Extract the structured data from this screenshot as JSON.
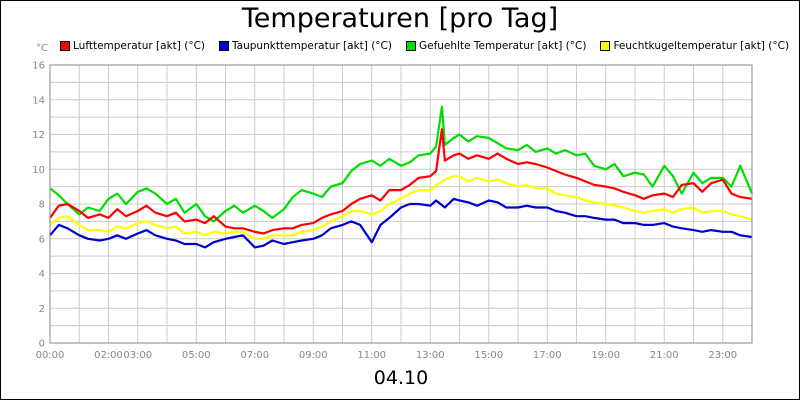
{
  "chart_data": {
    "type": "line",
    "title": "Temperaturen [pro Tag]",
    "unit": "°C",
    "date": "04.10",
    "ylim": [
      0,
      16
    ],
    "y_ticks": [
      0,
      2,
      4,
      6,
      8,
      10,
      12,
      14,
      16
    ],
    "x_range_hours": [
      0,
      24
    ],
    "x_ticks": [
      {
        "h": 0,
        "label": "00:00"
      },
      {
        "h": 2,
        "label": "02:00"
      },
      {
        "h": 3,
        "label": "03:00"
      },
      {
        "h": 5,
        "label": "05:00"
      },
      {
        "h": 7,
        "label": "07:00"
      },
      {
        "h": 9,
        "label": "09:00"
      },
      {
        "h": 11,
        "label": "11:00"
      },
      {
        "h": 13,
        "label": "13:00"
      },
      {
        "h": 15,
        "label": "15:00"
      },
      {
        "h": 17,
        "label": "17:00"
      },
      {
        "h": 19,
        "label": "19:00"
      },
      {
        "h": 21,
        "label": "21:00"
      },
      {
        "h": 23,
        "label": "23:00"
      }
    ],
    "grid": true,
    "legend_position": "top",
    "series": [
      {
        "name": "Lufttemperatur [akt] (°C)",
        "color": "#ff0000",
        "points": [
          [
            0,
            7.2
          ],
          [
            0.3,
            7.9
          ],
          [
            0.6,
            8.0
          ],
          [
            1.0,
            7.6
          ],
          [
            1.3,
            7.2
          ],
          [
            1.7,
            7.4
          ],
          [
            2.0,
            7.2
          ],
          [
            2.3,
            7.7
          ],
          [
            2.6,
            7.3
          ],
          [
            3.0,
            7.6
          ],
          [
            3.3,
            7.9
          ],
          [
            3.6,
            7.5
          ],
          [
            4.0,
            7.3
          ],
          [
            4.3,
            7.5
          ],
          [
            4.6,
            7.0
          ],
          [
            5.0,
            7.1
          ],
          [
            5.3,
            6.9
          ],
          [
            5.6,
            7.3
          ],
          [
            6.0,
            6.7
          ],
          [
            6.3,
            6.6
          ],
          [
            6.6,
            6.6
          ],
          [
            7.0,
            6.4
          ],
          [
            7.3,
            6.3
          ],
          [
            7.6,
            6.5
          ],
          [
            8.0,
            6.6
          ],
          [
            8.3,
            6.6
          ],
          [
            8.6,
            6.8
          ],
          [
            9.0,
            6.9
          ],
          [
            9.3,
            7.2
          ],
          [
            9.6,
            7.4
          ],
          [
            10.0,
            7.6
          ],
          [
            10.3,
            8.0
          ],
          [
            10.6,
            8.3
          ],
          [
            11.0,
            8.5
          ],
          [
            11.3,
            8.2
          ],
          [
            11.6,
            8.8
          ],
          [
            12.0,
            8.8
          ],
          [
            12.3,
            9.1
          ],
          [
            12.6,
            9.5
          ],
          [
            13.0,
            9.6
          ],
          [
            13.2,
            9.9
          ],
          [
            13.4,
            12.3
          ],
          [
            13.5,
            10.5
          ],
          [
            13.8,
            10.8
          ],
          [
            14.0,
            10.9
          ],
          [
            14.3,
            10.6
          ],
          [
            14.6,
            10.8
          ],
          [
            15.0,
            10.6
          ],
          [
            15.3,
            10.9
          ],
          [
            15.6,
            10.6
          ],
          [
            16.0,
            10.3
          ],
          [
            16.3,
            10.4
          ],
          [
            16.6,
            10.3
          ],
          [
            17.0,
            10.1
          ],
          [
            17.3,
            9.9
          ],
          [
            17.6,
            9.7
          ],
          [
            18.0,
            9.5
          ],
          [
            18.3,
            9.3
          ],
          [
            18.6,
            9.1
          ],
          [
            19.0,
            9.0
          ],
          [
            19.3,
            8.9
          ],
          [
            19.6,
            8.7
          ],
          [
            20.0,
            8.5
          ],
          [
            20.3,
            8.3
          ],
          [
            20.6,
            8.5
          ],
          [
            21.0,
            8.6
          ],
          [
            21.3,
            8.4
          ],
          [
            21.6,
            9.1
          ],
          [
            22.0,
            9.2
          ],
          [
            22.3,
            8.7
          ],
          [
            22.6,
            9.2
          ],
          [
            23.0,
            9.4
          ],
          [
            23.3,
            8.6
          ],
          [
            23.6,
            8.4
          ],
          [
            24.0,
            8.3
          ]
        ]
      },
      {
        "name": "Taupunkttemperatur [akt] (°C)",
        "color": "#0000cc",
        "points": [
          [
            0,
            6.2
          ],
          [
            0.3,
            6.8
          ],
          [
            0.6,
            6.6
          ],
          [
            1.0,
            6.2
          ],
          [
            1.3,
            6.0
          ],
          [
            1.7,
            5.9
          ],
          [
            2.0,
            6.0
          ],
          [
            2.3,
            6.2
          ],
          [
            2.6,
            6.0
          ],
          [
            3.0,
            6.3
          ],
          [
            3.3,
            6.5
          ],
          [
            3.6,
            6.2
          ],
          [
            4.0,
            6.0
          ],
          [
            4.3,
            5.9
          ],
          [
            4.6,
            5.7
          ],
          [
            5.0,
            5.7
          ],
          [
            5.3,
            5.5
          ],
          [
            5.6,
            5.8
          ],
          [
            6.0,
            6.0
          ],
          [
            6.3,
            6.1
          ],
          [
            6.6,
            6.2
          ],
          [
            7.0,
            5.5
          ],
          [
            7.3,
            5.6
          ],
          [
            7.6,
            5.9
          ],
          [
            8.0,
            5.7
          ],
          [
            8.3,
            5.8
          ],
          [
            8.6,
            5.9
          ],
          [
            9.0,
            6.0
          ],
          [
            9.3,
            6.2
          ],
          [
            9.6,
            6.6
          ],
          [
            10.0,
            6.8
          ],
          [
            10.3,
            7.0
          ],
          [
            10.6,
            6.8
          ],
          [
            11.0,
            5.8
          ],
          [
            11.3,
            6.8
          ],
          [
            11.6,
            7.2
          ],
          [
            12.0,
            7.8
          ],
          [
            12.3,
            8.0
          ],
          [
            12.6,
            8.0
          ],
          [
            13.0,
            7.9
          ],
          [
            13.2,
            8.2
          ],
          [
            13.5,
            7.8
          ],
          [
            13.8,
            8.3
          ],
          [
            14.0,
            8.2
          ],
          [
            14.3,
            8.1
          ],
          [
            14.6,
            7.9
          ],
          [
            15.0,
            8.2
          ],
          [
            15.3,
            8.1
          ],
          [
            15.6,
            7.8
          ],
          [
            16.0,
            7.8
          ],
          [
            16.3,
            7.9
          ],
          [
            16.6,
            7.8
          ],
          [
            17.0,
            7.8
          ],
          [
            17.3,
            7.6
          ],
          [
            17.6,
            7.5
          ],
          [
            18.0,
            7.3
          ],
          [
            18.3,
            7.3
          ],
          [
            18.6,
            7.2
          ],
          [
            19.0,
            7.1
          ],
          [
            19.3,
            7.1
          ],
          [
            19.6,
            6.9
          ],
          [
            20.0,
            6.9
          ],
          [
            20.3,
            6.8
          ],
          [
            20.6,
            6.8
          ],
          [
            21.0,
            6.9
          ],
          [
            21.3,
            6.7
          ],
          [
            21.6,
            6.6
          ],
          [
            22.0,
            6.5
          ],
          [
            22.3,
            6.4
          ],
          [
            22.6,
            6.5
          ],
          [
            23.0,
            6.4
          ],
          [
            23.3,
            6.4
          ],
          [
            23.6,
            6.2
          ],
          [
            24.0,
            6.1
          ]
        ]
      },
      {
        "name": "Gefuehlte Temperatur [akt] (°C)",
        "color": "#00dd00",
        "points": [
          [
            0,
            8.9
          ],
          [
            0.3,
            8.5
          ],
          [
            0.6,
            8.0
          ],
          [
            1.0,
            7.4
          ],
          [
            1.3,
            7.8
          ],
          [
            1.7,
            7.6
          ],
          [
            2.0,
            8.3
          ],
          [
            2.3,
            8.6
          ],
          [
            2.6,
            8.0
          ],
          [
            3.0,
            8.7
          ],
          [
            3.3,
            8.9
          ],
          [
            3.6,
            8.6
          ],
          [
            4.0,
            8.0
          ],
          [
            4.3,
            8.3
          ],
          [
            4.6,
            7.5
          ],
          [
            5.0,
            8.0
          ],
          [
            5.3,
            7.3
          ],
          [
            5.6,
            7.0
          ],
          [
            6.0,
            7.6
          ],
          [
            6.3,
            7.9
          ],
          [
            6.6,
            7.5
          ],
          [
            7.0,
            7.9
          ],
          [
            7.3,
            7.6
          ],
          [
            7.6,
            7.2
          ],
          [
            8.0,
            7.7
          ],
          [
            8.3,
            8.4
          ],
          [
            8.6,
            8.8
          ],
          [
            9.0,
            8.6
          ],
          [
            9.3,
            8.4
          ],
          [
            9.6,
            9.0
          ],
          [
            10.0,
            9.2
          ],
          [
            10.3,
            9.9
          ],
          [
            10.6,
            10.3
          ],
          [
            11.0,
            10.5
          ],
          [
            11.3,
            10.2
          ],
          [
            11.6,
            10.6
          ],
          [
            12.0,
            10.2
          ],
          [
            12.3,
            10.4
          ],
          [
            12.6,
            10.8
          ],
          [
            13.0,
            10.9
          ],
          [
            13.2,
            11.3
          ],
          [
            13.4,
            13.6
          ],
          [
            13.5,
            11.4
          ],
          [
            13.8,
            11.8
          ],
          [
            14.0,
            12.0
          ],
          [
            14.3,
            11.6
          ],
          [
            14.6,
            11.9
          ],
          [
            15.0,
            11.8
          ],
          [
            15.3,
            11.5
          ],
          [
            15.6,
            11.2
          ],
          [
            16.0,
            11.1
          ],
          [
            16.3,
            11.4
          ],
          [
            16.6,
            11.0
          ],
          [
            17.0,
            11.2
          ],
          [
            17.3,
            10.9
          ],
          [
            17.6,
            11.1
          ],
          [
            18.0,
            10.8
          ],
          [
            18.3,
            10.9
          ],
          [
            18.6,
            10.2
          ],
          [
            19.0,
            10.0
          ],
          [
            19.3,
            10.3
          ],
          [
            19.6,
            9.6
          ],
          [
            20.0,
            9.8
          ],
          [
            20.3,
            9.7
          ],
          [
            20.6,
            9.0
          ],
          [
            21.0,
            10.2
          ],
          [
            21.3,
            9.6
          ],
          [
            21.6,
            8.6
          ],
          [
            22.0,
            9.8
          ],
          [
            22.3,
            9.2
          ],
          [
            22.6,
            9.5
          ],
          [
            23.0,
            9.5
          ],
          [
            23.3,
            9.0
          ],
          [
            23.6,
            10.2
          ],
          [
            24.0,
            8.6
          ]
        ]
      },
      {
        "name": "Feuchtkugeltemperatur [akt] (°C)",
        "color": "#ffff00",
        "points": [
          [
            0,
            6.8
          ],
          [
            0.3,
            7.2
          ],
          [
            0.6,
            7.3
          ],
          [
            1.0,
            6.8
          ],
          [
            1.3,
            6.5
          ],
          [
            1.7,
            6.5
          ],
          [
            2.0,
            6.4
          ],
          [
            2.3,
            6.7
          ],
          [
            2.6,
            6.6
          ],
          [
            3.0,
            6.9
          ],
          [
            3.3,
            7.0
          ],
          [
            3.6,
            6.8
          ],
          [
            4.0,
            6.6
          ],
          [
            4.3,
            6.7
          ],
          [
            4.6,
            6.3
          ],
          [
            5.0,
            6.4
          ],
          [
            5.3,
            6.2
          ],
          [
            5.6,
            6.4
          ],
          [
            6.0,
            6.3
          ],
          [
            6.3,
            6.4
          ],
          [
            6.6,
            6.4
          ],
          [
            7.0,
            6.0
          ],
          [
            7.3,
            6.0
          ],
          [
            7.6,
            6.2
          ],
          [
            8.0,
            6.2
          ],
          [
            8.3,
            6.2
          ],
          [
            8.6,
            6.4
          ],
          [
            9.0,
            6.5
          ],
          [
            9.3,
            6.7
          ],
          [
            9.6,
            7.0
          ],
          [
            10.0,
            7.3
          ],
          [
            10.3,
            7.6
          ],
          [
            10.6,
            7.6
          ],
          [
            11.0,
            7.4
          ],
          [
            11.3,
            7.6
          ],
          [
            11.6,
            8.0
          ],
          [
            12.0,
            8.3
          ],
          [
            12.3,
            8.6
          ],
          [
            12.6,
            8.8
          ],
          [
            13.0,
            8.8
          ],
          [
            13.2,
            9.1
          ],
          [
            13.5,
            9.4
          ],
          [
            13.8,
            9.6
          ],
          [
            14.0,
            9.6
          ],
          [
            14.3,
            9.3
          ],
          [
            14.6,
            9.5
          ],
          [
            15.0,
            9.3
          ],
          [
            15.3,
            9.4
          ],
          [
            15.6,
            9.2
          ],
          [
            16.0,
            9.0
          ],
          [
            16.3,
            9.1
          ],
          [
            16.6,
            8.9
          ],
          [
            17.0,
            8.9
          ],
          [
            17.3,
            8.6
          ],
          [
            17.6,
            8.5
          ],
          [
            18.0,
            8.4
          ],
          [
            18.3,
            8.2
          ],
          [
            18.6,
            8.1
          ],
          [
            19.0,
            8.0
          ],
          [
            19.3,
            7.9
          ],
          [
            19.6,
            7.8
          ],
          [
            20.0,
            7.6
          ],
          [
            20.3,
            7.5
          ],
          [
            20.6,
            7.6
          ],
          [
            21.0,
            7.7
          ],
          [
            21.3,
            7.5
          ],
          [
            21.6,
            7.7
          ],
          [
            22.0,
            7.8
          ],
          [
            22.3,
            7.5
          ],
          [
            22.6,
            7.6
          ],
          [
            23.0,
            7.6
          ],
          [
            23.3,
            7.4
          ],
          [
            23.6,
            7.3
          ],
          [
            24.0,
            7.1
          ]
        ]
      }
    ]
  }
}
